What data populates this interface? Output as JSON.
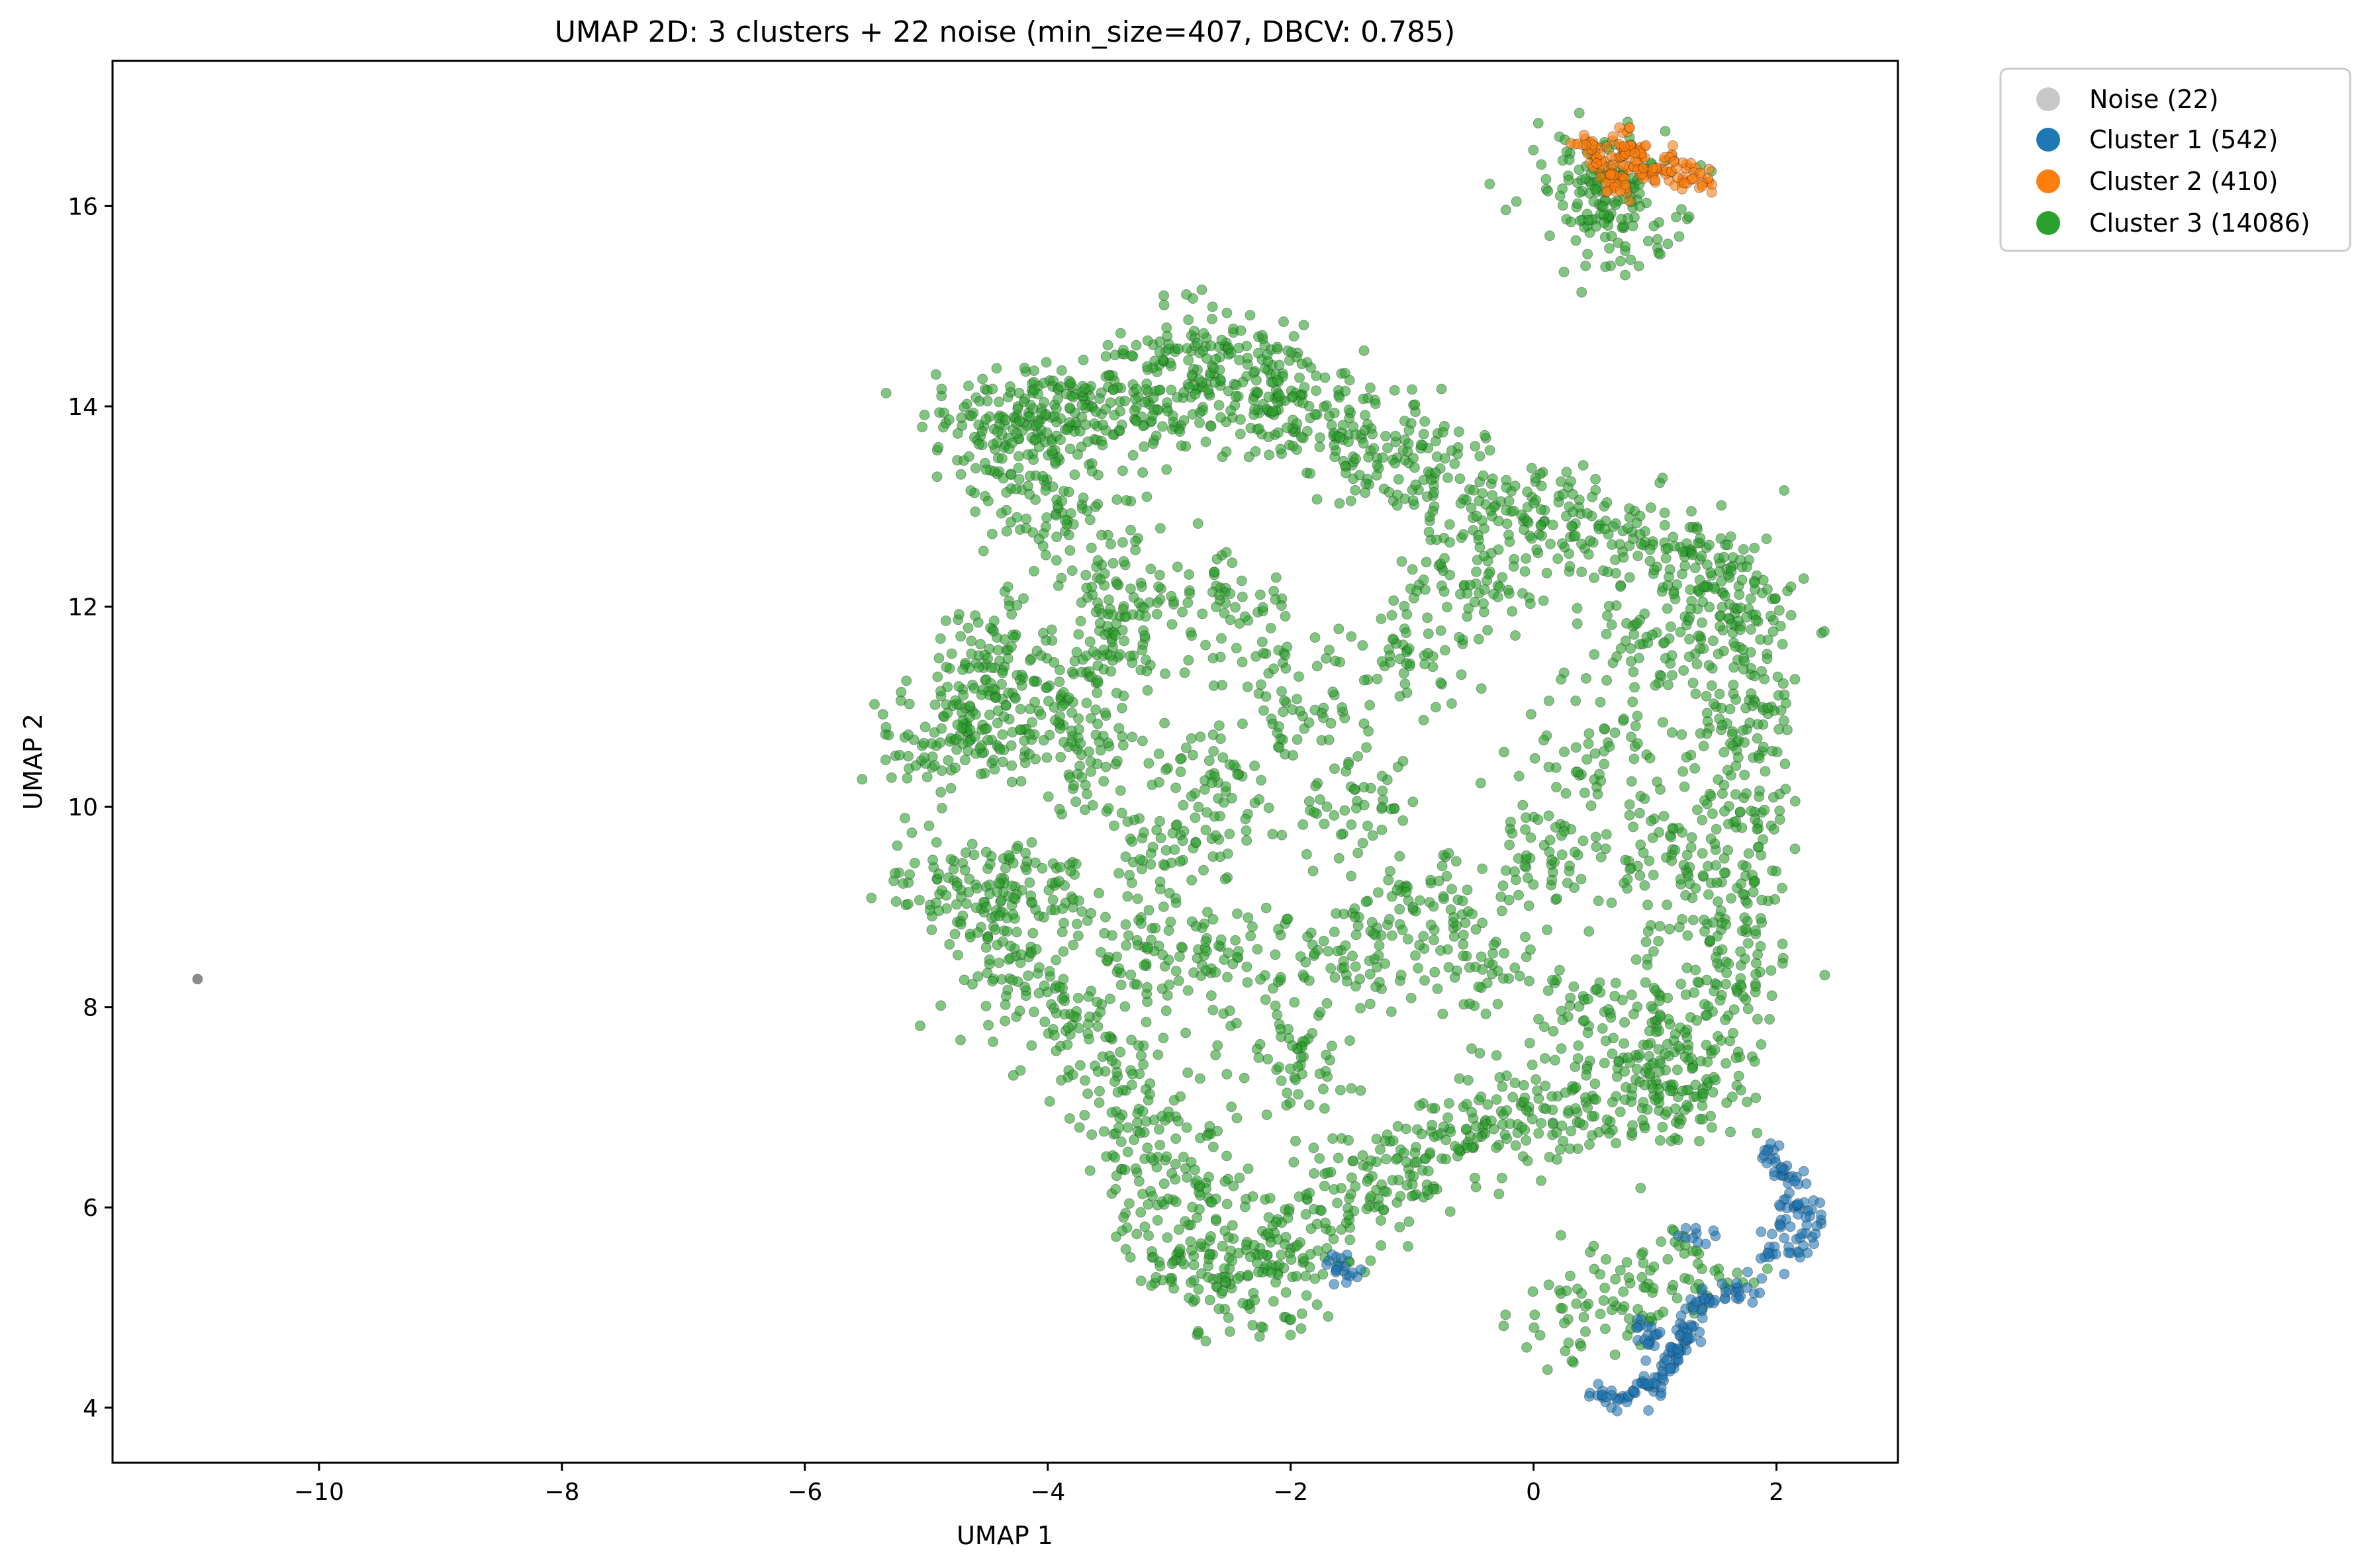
{
  "chart_data": {
    "type": "scatter",
    "title": "UMAP 2D: 3 clusters + 22 noise (min_size=407, DBCV: 0.785)",
    "xlabel": "UMAP 1",
    "ylabel": "UMAP 2",
    "xlim": [
      -11.7,
      3.0
    ],
    "ylim": [
      3.45,
      17.45
    ],
    "xticks": [
      -10,
      -8,
      -6,
      -4,
      -2,
      0,
      2
    ],
    "yticks": [
      4,
      6,
      8,
      10,
      12,
      14,
      16
    ],
    "grid": false,
    "legend_position": "outside-top-right",
    "series": [
      {
        "name": "Noise (22)",
        "color": "#c8c8c8",
        "marker_color": "#7f7f7f",
        "count": 22,
        "points": [
          [
            -11.0,
            8.28
          ]
        ]
      },
      {
        "name": "Cluster 1 (542)",
        "color": "#1f77b4",
        "count": 542,
        "points": [
          [
            0.55,
            4.15
          ],
          [
            0.7,
            4.12
          ],
          [
            0.85,
            4.15
          ],
          [
            1.0,
            4.3
          ],
          [
            1.1,
            4.45
          ],
          [
            1.2,
            4.6
          ],
          [
            1.3,
            4.8
          ],
          [
            1.35,
            5.0
          ],
          [
            1.42,
            5.1
          ],
          [
            1.0,
            4.7
          ],
          [
            0.9,
            4.8
          ],
          [
            1.6,
            5.15
          ],
          [
            1.75,
            5.2
          ],
          [
            1.95,
            5.5
          ],
          [
            2.05,
            5.8
          ],
          [
            2.1,
            6.05
          ],
          [
            2.15,
            6.3
          ],
          [
            2.25,
            6.0
          ],
          [
            2.3,
            5.8
          ],
          [
            1.95,
            6.55
          ],
          [
            2.0,
            6.4
          ],
          [
            1.35,
            5.7
          ],
          [
            -1.6,
            5.45
          ],
          [
            -1.55,
            5.32
          ],
          [
            2.15,
            5.6
          ],
          [
            0.95,
            4.2
          ],
          [
            1.15,
            4.55
          ],
          [
            1.25,
            4.7
          ]
        ]
      },
      {
        "name": "Cluster 2 (410)",
        "color": "#ff7f0e",
        "count": 410,
        "points": [
          [
            0.4,
            16.6
          ],
          [
            0.55,
            16.45
          ],
          [
            0.7,
            16.7
          ],
          [
            0.75,
            16.5
          ],
          [
            0.85,
            16.4
          ],
          [
            0.95,
            16.35
          ],
          [
            1.05,
            16.3
          ],
          [
            1.2,
            16.32
          ],
          [
            1.35,
            16.35
          ],
          [
            1.4,
            16.25
          ],
          [
            0.6,
            16.3
          ],
          [
            0.65,
            16.2
          ],
          [
            0.8,
            16.6
          ],
          [
            0.9,
            16.5
          ],
          [
            0.5,
            16.55
          ],
          [
            1.1,
            16.45
          ],
          [
            0.7,
            16.25
          ]
        ]
      },
      {
        "name": "Cluster 3 (14086)",
        "color": "#2ca02c",
        "count": 14086,
        "points": [
          [
            -4.5,
            13.8
          ],
          [
            -4.2,
            14.0
          ],
          [
            -3.8,
            13.8
          ],
          [
            -3.5,
            14.1
          ],
          [
            -3.2,
            13.9
          ],
          [
            -2.8,
            14.6
          ],
          [
            -2.6,
            14.3
          ],
          [
            -2.3,
            14.2
          ],
          [
            -2.0,
            14.0
          ],
          [
            -1.6,
            13.8
          ],
          [
            -1.2,
            13.6
          ],
          [
            -0.8,
            13.3
          ],
          [
            -0.3,
            12.9
          ],
          [
            0.2,
            12.8
          ],
          [
            0.8,
            12.6
          ],
          [
            1.3,
            12.5
          ],
          [
            1.6,
            12.2
          ],
          [
            1.75,
            11.8
          ],
          [
            1.7,
            11.0
          ],
          [
            1.7,
            10.3
          ],
          [
            1.7,
            9.5
          ],
          [
            1.6,
            8.8
          ],
          [
            1.5,
            8.2
          ],
          [
            1.4,
            7.5
          ],
          [
            1.2,
            7.1
          ],
          [
            0.8,
            7.3
          ],
          [
            0.3,
            7.0
          ],
          [
            -0.2,
            6.9
          ],
          [
            -0.7,
            6.6
          ],
          [
            -1.2,
            6.3
          ],
          [
            -1.7,
            6.0
          ],
          [
            -2.1,
            5.6
          ],
          [
            -2.4,
            5.2
          ],
          [
            -2.8,
            5.4
          ],
          [
            -2.9,
            6.0
          ],
          [
            -3.0,
            6.6
          ],
          [
            -3.3,
            7.2
          ],
          [
            -3.8,
            7.8
          ],
          [
            -4.3,
            8.3
          ],
          [
            -4.8,
            9.2
          ],
          [
            -4.4,
            9.1
          ],
          [
            -4.0,
            9.2
          ],
          [
            -5.0,
            10.6
          ],
          [
            -4.6,
            10.7
          ],
          [
            -4.3,
            11.2
          ],
          [
            -4.5,
            11.6
          ],
          [
            -4.0,
            10.9
          ],
          [
            -3.6,
            10.5
          ],
          [
            -3.5,
            11.5
          ],
          [
            -3.3,
            12.2
          ],
          [
            -3.8,
            12.8
          ],
          [
            -4.3,
            13.3
          ],
          [
            -2.5,
            12.0
          ],
          [
            -2.0,
            11.0
          ],
          [
            -1.5,
            10.0
          ],
          [
            -1.0,
            9.0
          ],
          [
            -0.5,
            8.5
          ],
          [
            0.0,
            9.5
          ],
          [
            0.5,
            10.5
          ],
          [
            1.0,
            11.5
          ],
          [
            -3.0,
            9.5
          ],
          [
            -2.5,
            8.5
          ],
          [
            -2.0,
            7.5
          ],
          [
            -1.5,
            8.5
          ],
          [
            -1.0,
            11.5
          ],
          [
            -0.5,
            12.2
          ],
          [
            0.5,
            8.0
          ],
          [
            1.0,
            9.5
          ],
          [
            -2.6,
            10.2
          ],
          [
            -3.2,
            8.5
          ],
          [
            0.4,
            4.95
          ],
          [
            0.55,
            16.25
          ],
          [
            0.75,
            15.85
          ],
          [
            0.5,
            16.15
          ],
          [
            1.25,
            5.25
          ]
        ]
      }
    ]
  }
}
